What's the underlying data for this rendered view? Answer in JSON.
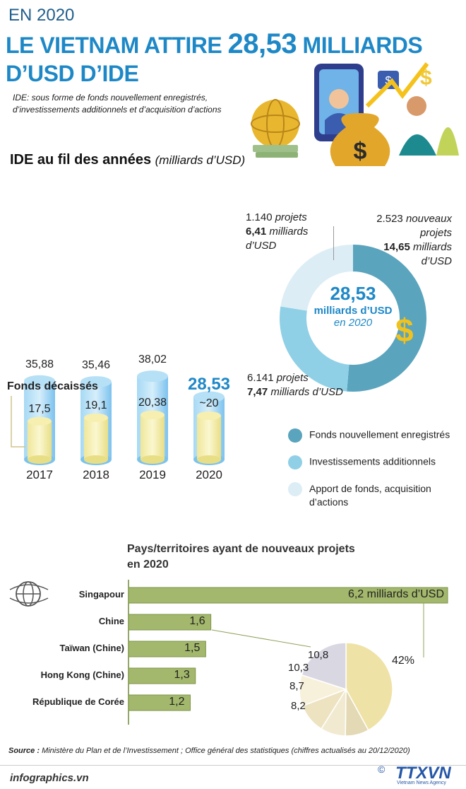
{
  "header": {
    "year": "EN 2020",
    "title_part1": "LE VIETNAM ATTIRE",
    "title_big": "28,53",
    "title_part2": "MILLIARDS",
    "title_line2": "D’USD D’IDE",
    "note_line1": "IDE: sous forme de fonds nouvellement enregistrés,",
    "note_line2": "d’investissements additionnels et d’acquisition d’actions"
  },
  "section1": {
    "heading": "IDE au fil des années",
    "heading_unit": "(milliards d’USD)",
    "disbursed_label": "Fonds décaissés"
  },
  "chart_data": [
    {
      "type": "bar",
      "categories": [
        "2017",
        "2018",
        "2019",
        "2020"
      ],
      "series": [
        {
          "name": "",
          "values": [
            35.88,
            35.46,
            38.02,
            28.53
          ],
          "labels": [
            "35,88",
            "35,46",
            "38,02",
            "28,53"
          ]
        },
        {
          "name": "Fonds décaissés",
          "values": [
            17.5,
            19.1,
            20.38,
            20
          ],
          "labels": [
            "17,5",
            "19,1",
            "20,38",
            "~20"
          ]
        }
      ],
      "ylim": [
        0,
        40
      ]
    },
    {
      "type": "pie",
      "center_value": "28,53",
      "center_unit": "milliards d’USD",
      "center_year": "en 2020",
      "slices": [
        {
          "name": "Fonds nouvellement enregistrés",
          "value": 14.65,
          "projects": "2.523",
          "projects_word": "nouveaux projets",
          "amount": "14,65",
          "unit": "milliards d’USD",
          "color": "#5aa4bd"
        },
        {
          "name": "Investissements additionnels",
          "value": 7.47,
          "projects": "6.141",
          "projects_word": "projets",
          "amount": "7,47",
          "unit": "milliards d’USD",
          "color": "#8fd0e6"
        },
        {
          "name": "Apport de fonds, acquisition d’actions",
          "value": 6.41,
          "projects": "1.140",
          "projects_word": "projets",
          "amount": "6,41",
          "unit": "milliards d’USD",
          "color": "#dcedf5"
        }
      ]
    },
    {
      "type": "bar",
      "orientation": "horizontal",
      "title": "Pays/territoires ayant de nouveaux projets en 2020",
      "categories": [
        "Singapour",
        "Chine",
        "Taïwan (Chine)",
        "Hong Kong (Chine)",
        "République de Corée"
      ],
      "values": [
        6.2,
        1.6,
        1.5,
        1.3,
        1.2
      ],
      "labels": [
        "6,2 milliards d’USD",
        "1,6",
        "1,5",
        "1,3",
        "1,2"
      ],
      "color": "#a3b86c"
    },
    {
      "type": "pie",
      "slices": [
        {
          "label": "42%",
          "value": 42,
          "color": "#efe2a6"
        },
        {
          "label": "8,2",
          "value": 8.2,
          "color": "#e3d9b4"
        },
        {
          "label": "8,7",
          "value": 8.7,
          "color": "#f2ead0"
        },
        {
          "label": "10,3",
          "value": 10.3,
          "color": "#ede3c1"
        },
        {
          "label": "10,8",
          "value": 10.8,
          "color": "#f7f1dc"
        },
        {
          "label": "",
          "value": 20,
          "color": "#d9d7e2"
        }
      ]
    }
  ],
  "section2": {
    "heading_line1": "Pays/territoires ayant de nouveaux projets",
    "heading_line2": "en 2020"
  },
  "footer": {
    "source_label": "Source :",
    "source_text": "Ministère du Plan et de l’Investissement ; Office général des statistiques (chiffres actualisés au 20/12/2020)",
    "site": "infographics.vn",
    "logo": "TTXVN",
    "logo_sub": "Vietnam News Agency"
  },
  "colors": {
    "accent": "#1e88c7",
    "bar_blue": "#8ecdf0",
    "bar_yellow": "#f6f1a6",
    "bar_green": "#a3b86c"
  },
  "icons": [
    "globe-icon",
    "dollar-icon",
    "money-bag-icon",
    "gold-globe-icon"
  ]
}
